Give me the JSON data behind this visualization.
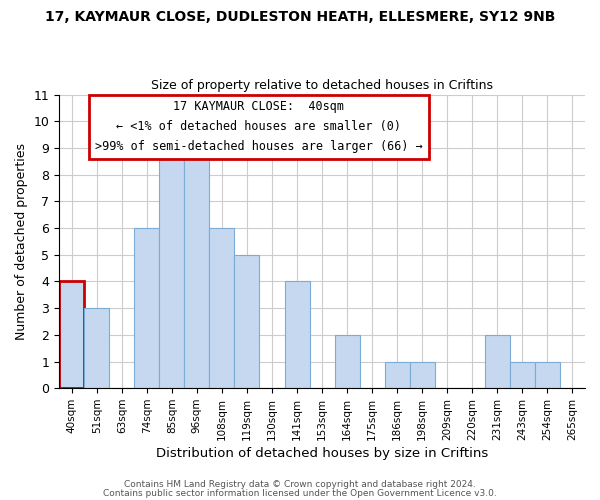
{
  "title_line1": "17, KAYMAUR CLOSE, DUDLESTON HEATH, ELLESMERE, SY12 9NB",
  "title_line2": "Size of property relative to detached houses in Criftins",
  "xlabel": "Distribution of detached houses by size in Criftins",
  "ylabel": "Number of detached properties",
  "bar_labels": [
    "40sqm",
    "51sqm",
    "63sqm",
    "74sqm",
    "85sqm",
    "96sqm",
    "108sqm",
    "119sqm",
    "130sqm",
    "141sqm",
    "153sqm",
    "164sqm",
    "175sqm",
    "186sqm",
    "198sqm",
    "209sqm",
    "220sqm",
    "231sqm",
    "243sqm",
    "254sqm",
    "265sqm"
  ],
  "bar_heights": [
    4,
    3,
    0,
    6,
    9,
    9,
    6,
    5,
    0,
    4,
    0,
    2,
    0,
    1,
    1,
    0,
    0,
    2,
    1,
    1,
    0
  ],
  "bar_color": "#c5d8f0",
  "bar_edge_color": "#7aacd6",
  "highlight_bar_index": 0,
  "highlight_color": "#cc0000",
  "ylim": [
    0,
    11
  ],
  "yticks": [
    0,
    1,
    2,
    3,
    4,
    5,
    6,
    7,
    8,
    9,
    10,
    11
  ],
  "annotation_title": "17 KAYMAUR CLOSE:  40sqm",
  "annotation_line1": "← <1% of detached houses are smaller (0)",
  "annotation_line2": ">99% of semi-detached houses are larger (66) →",
  "annotation_box_color": "#ffffff",
  "annotation_box_edge": "#cc0000",
  "footer_line1": "Contains HM Land Registry data © Crown copyright and database right 2024.",
  "footer_line2": "Contains public sector information licensed under the Open Government Licence v3.0.",
  "background_color": "#ffffff",
  "grid_color": "#cccccc"
}
